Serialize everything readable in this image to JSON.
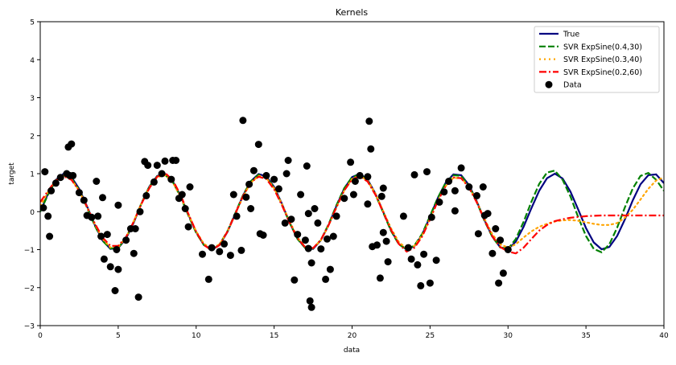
{
  "chart_data": {
    "type": "line",
    "title": "Kernels",
    "xlabel": "data",
    "ylabel": "target",
    "xlim": [
      0,
      40
    ],
    "ylim": [
      -3,
      5
    ],
    "xticks": [
      0,
      5,
      10,
      15,
      20,
      25,
      30,
      35,
      40
    ],
    "yticks": [
      -3,
      -2,
      -1,
      0,
      1,
      2,
      3,
      4,
      5
    ],
    "legend_position": "top-right",
    "grid": false,
    "series": [
      {
        "name": "True",
        "color": "#000080",
        "style": "solid",
        "x": [
          0,
          0.5,
          1,
          1.5,
          2,
          2.5,
          3,
          3.5,
          4,
          4.5,
          5,
          5.5,
          6,
          6.5,
          7,
          7.5,
          8,
          8.5,
          9,
          9.5,
          10,
          10.5,
          11,
          11.5,
          12,
          12.5,
          13,
          13.5,
          14,
          14.5,
          15,
          15.5,
          16,
          16.5,
          17,
          17.5,
          18,
          18.5,
          19,
          19.5,
          20,
          20.5,
          21,
          21.5,
          22,
          22.5,
          23,
          23.5,
          24,
          24.5,
          25,
          25.5,
          26,
          26.5,
          27,
          27.5,
          28,
          28.5,
          29,
          29.5,
          30,
          30.5,
          31,
          31.5,
          32,
          32.5,
          33,
          33.5,
          34,
          34.5,
          35,
          35.5,
          36,
          36.5,
          37,
          37.5,
          38,
          38.5,
          39,
          39.5,
          40
        ],
        "y": [
          0.0,
          0.48,
          0.84,
          1.0,
          0.91,
          0.6,
          0.14,
          -0.35,
          -0.76,
          -0.98,
          -0.96,
          -0.71,
          -0.28,
          0.22,
          0.66,
          0.94,
          0.99,
          0.8,
          0.41,
          -0.08,
          -0.54,
          -0.88,
          -1.0,
          -0.88,
          -0.54,
          -0.07,
          0.42,
          0.8,
          0.99,
          0.93,
          0.65,
          0.21,
          -0.29,
          -0.71,
          -0.96,
          -0.98,
          -0.75,
          -0.35,
          0.15,
          0.61,
          0.91,
          1.0,
          0.84,
          0.47,
          -0.01,
          -0.49,
          -0.85,
          -1.0,
          -0.91,
          -0.6,
          -0.13,
          0.36,
          0.76,
          0.98,
          0.96,
          0.7,
          0.27,
          -0.23,
          -0.66,
          -0.94,
          -0.99,
          -0.79,
          -0.4,
          0.09,
          0.55,
          0.88,
          1.0,
          0.87,
          0.53,
          0.06,
          -0.43,
          -0.81,
          -0.99,
          -0.93,
          -0.64,
          -0.2,
          0.3,
          0.72,
          0.96,
          0.98,
          0.75
        ]
      },
      {
        "name": "SVR ExpSine(0.4,30)",
        "color": "#008000",
        "style": "dashed",
        "x": [
          0,
          0.5,
          1,
          1.5,
          2,
          2.5,
          3,
          3.5,
          4,
          4.5,
          5,
          5.5,
          6,
          6.5,
          7,
          7.5,
          8,
          8.5,
          9,
          9.5,
          10,
          10.5,
          11,
          11.5,
          12,
          12.5,
          13,
          13.5,
          14,
          14.5,
          15,
          15.5,
          16,
          16.5,
          17,
          17.5,
          18,
          18.5,
          19,
          19.5,
          20,
          20.5,
          21,
          21.5,
          22,
          22.5,
          23,
          23.5,
          24,
          24.5,
          25,
          25.5,
          26,
          26.5,
          27,
          27.5,
          28,
          28.5,
          29,
          29.5,
          30,
          30.5,
          31,
          31.5,
          32,
          32.5,
          33,
          33.5,
          34,
          34.5,
          35,
          35.5,
          36,
          36.5,
          37,
          37.5,
          38,
          38.5,
          39,
          39.5,
          40
        ],
        "y": [
          0.0,
          0.45,
          0.82,
          0.97,
          0.88,
          0.57,
          0.11,
          -0.37,
          -0.77,
          -0.97,
          -0.95,
          -0.69,
          -0.26,
          0.23,
          0.66,
          0.93,
          0.97,
          0.78,
          0.39,
          -0.1,
          -0.56,
          -0.88,
          -0.99,
          -0.86,
          -0.52,
          -0.05,
          0.43,
          0.8,
          0.97,
          0.91,
          0.63,
          0.19,
          -0.3,
          -0.72,
          -0.96,
          -0.97,
          -0.74,
          -0.33,
          0.17,
          0.62,
          0.91,
          0.98,
          0.82,
          0.45,
          -0.03,
          -0.51,
          -0.86,
          -0.99,
          -0.89,
          -0.58,
          -0.11,
          0.37,
          0.76,
          0.96,
          0.94,
          0.68,
          0.25,
          -0.25,
          -0.67,
          -0.94,
          -0.98,
          -0.72,
          -0.27,
          0.26,
          0.73,
          1.03,
          1.08,
          0.84,
          0.4,
          -0.14,
          -0.64,
          -0.98,
          -1.07,
          -0.86,
          -0.42,
          0.12,
          0.61,
          0.94,
          1.02,
          0.84,
          0.55
        ]
      },
      {
        "name": "SVR ExpSine(0.3,40)",
        "color": "#FFA500",
        "style": "dotted",
        "x": [
          0,
          0.5,
          1,
          1.5,
          2,
          2.5,
          3,
          3.5,
          4,
          4.5,
          5,
          5.5,
          6,
          6.5,
          7,
          7.5,
          8,
          8.5,
          9,
          9.5,
          10,
          10.5,
          11,
          11.5,
          12,
          12.5,
          13,
          13.5,
          14,
          14.5,
          15,
          15.5,
          16,
          16.5,
          17,
          17.5,
          18,
          18.5,
          19,
          19.5,
          20,
          20.5,
          21,
          21.5,
          22,
          22.5,
          23,
          23.5,
          24,
          24.5,
          25,
          25.5,
          26,
          26.5,
          27,
          27.5,
          28,
          28.5,
          29,
          29.5,
          30,
          30.5,
          31,
          31.5,
          32,
          32.5,
          33,
          33.5,
          34,
          34.5,
          35,
          35.5,
          36,
          36.5,
          37,
          37.5,
          38,
          38.5,
          39,
          39.5,
          40
        ],
        "y": [
          0.15,
          0.52,
          0.83,
          0.95,
          0.85,
          0.55,
          0.12,
          -0.33,
          -0.72,
          -0.94,
          -0.93,
          -0.68,
          -0.25,
          0.22,
          0.64,
          0.91,
          0.96,
          0.77,
          0.4,
          -0.07,
          -0.52,
          -0.85,
          -0.97,
          -0.86,
          -0.53,
          -0.08,
          0.39,
          0.76,
          0.94,
          0.89,
          0.62,
          0.2,
          -0.26,
          -0.68,
          -0.93,
          -0.96,
          -0.75,
          -0.36,
          0.11,
          0.56,
          0.86,
          0.95,
          0.81,
          0.47,
          0.01,
          -0.44,
          -0.8,
          -0.97,
          -0.9,
          -0.62,
          -0.19,
          0.28,
          0.67,
          0.89,
          0.88,
          0.65,
          0.26,
          -0.2,
          -0.6,
          -0.86,
          -0.95,
          -0.86,
          -0.68,
          -0.52,
          -0.4,
          -0.32,
          -0.26,
          -0.23,
          -0.22,
          -0.24,
          -0.28,
          -0.32,
          -0.35,
          -0.35,
          -0.3,
          -0.16,
          0.05,
          0.32,
          0.6,
          0.82,
          0.9
        ]
      },
      {
        "name": "SVR ExpSine(0.2,60)",
        "color": "#FF0000",
        "style": "dashdot",
        "x": [
          0,
          0.5,
          1,
          1.5,
          2,
          2.5,
          3,
          3.5,
          4,
          4.5,
          5,
          5.5,
          6,
          6.5,
          7,
          7.5,
          8,
          8.5,
          9,
          9.5,
          10,
          10.5,
          11,
          11.5,
          12,
          12.5,
          13,
          13.5,
          14,
          14.5,
          15,
          15.5,
          16,
          16.5,
          17,
          17.5,
          18,
          18.5,
          19,
          19.5,
          20,
          20.5,
          21,
          21.5,
          22,
          22.5,
          23,
          23.5,
          24,
          24.5,
          25,
          25.5,
          26,
          26.5,
          27,
          27.5,
          28,
          28.5,
          29,
          29.5,
          30,
          30.5,
          31,
          31.5,
          32,
          32.5,
          33,
          33.5,
          34,
          34.5,
          35,
          35.5,
          36,
          36.5,
          37,
          37.5,
          38,
          38.5,
          39,
          39.5,
          40
        ],
        "y": [
          0.25,
          0.55,
          0.82,
          0.93,
          0.84,
          0.55,
          0.13,
          -0.31,
          -0.68,
          -0.9,
          -0.9,
          -0.67,
          -0.26,
          0.21,
          0.62,
          0.92,
          1.02,
          0.83,
          0.44,
          -0.06,
          -0.53,
          -0.88,
          -1.02,
          -0.88,
          -0.53,
          -0.06,
          0.41,
          0.77,
          0.92,
          0.86,
          0.59,
          0.17,
          -0.3,
          -0.7,
          -0.94,
          -0.96,
          -0.74,
          -0.35,
          0.12,
          0.56,
          0.85,
          0.93,
          0.79,
          0.44,
          -0.02,
          -0.48,
          -0.85,
          -1.05,
          -0.95,
          -0.65,
          -0.2,
          0.28,
          0.68,
          0.9,
          0.88,
          0.63,
          0.24,
          -0.23,
          -0.65,
          -0.93,
          -1.05,
          -1.1,
          -0.95,
          -0.72,
          -0.5,
          -0.35,
          -0.25,
          -0.2,
          -0.16,
          -0.14,
          -0.12,
          -0.11,
          -0.1,
          -0.1,
          -0.1,
          -0.1,
          -0.1,
          -0.1,
          -0.1,
          -0.1,
          -0.1
        ]
      }
    ],
    "scatter": {
      "name": "Data",
      "color": "#000000",
      "points": [
        [
          0.2,
          0.1
        ],
        [
          0.3,
          1.05
        ],
        [
          0.5,
          -0.12
        ],
        [
          0.6,
          -0.65
        ],
        [
          0.7,
          0.55
        ],
        [
          1.0,
          0.75
        ],
        [
          1.3,
          0.9
        ],
        [
          1.7,
          1.0
        ],
        [
          1.8,
          1.7
        ],
        [
          1.9,
          0.95
        ],
        [
          2.0,
          1.78
        ],
        [
          2.1,
          0.95
        ],
        [
          2.5,
          0.5
        ],
        [
          2.8,
          0.3
        ],
        [
          3.0,
          -0.1
        ],
        [
          3.3,
          -0.15
        ],
        [
          3.6,
          0.8
        ],
        [
          3.7,
          -0.12
        ],
        [
          3.9,
          -0.65
        ],
        [
          4.0,
          0.37
        ],
        [
          4.1,
          -1.25
        ],
        [
          4.3,
          -0.6
        ],
        [
          4.5,
          -1.45
        ],
        [
          4.8,
          -2.08
        ],
        [
          4.9,
          -1.0
        ],
        [
          5.0,
          -1.52
        ],
        [
          5.0,
          0.17
        ],
        [
          5.5,
          -0.75
        ],
        [
          5.8,
          -0.45
        ],
        [
          6.0,
          -1.1
        ],
        [
          6.1,
          -0.45
        ],
        [
          6.3,
          -2.25
        ],
        [
          6.4,
          0.0
        ],
        [
          6.7,
          1.32
        ],
        [
          6.8,
          0.42
        ],
        [
          6.9,
          1.22
        ],
        [
          7.3,
          0.78
        ],
        [
          7.5,
          1.22
        ],
        [
          7.8,
          1.0
        ],
        [
          8.0,
          1.33
        ],
        [
          8.4,
          0.85
        ],
        [
          8.5,
          1.35
        ],
        [
          8.7,
          1.35
        ],
        [
          8.9,
          0.35
        ],
        [
          9.1,
          0.45
        ],
        [
          9.3,
          0.08
        ],
        [
          9.5,
          -0.4
        ],
        [
          9.6,
          0.65
        ],
        [
          10.4,
          -1.12
        ],
        [
          10.8,
          -1.78
        ],
        [
          11.0,
          -0.95
        ],
        [
          11.5,
          -1.05
        ],
        [
          11.8,
          -0.85
        ],
        [
          12.2,
          -1.15
        ],
        [
          12.4,
          0.45
        ],
        [
          12.6,
          -0.12
        ],
        [
          12.9,
          -1.02
        ],
        [
          13.0,
          2.4
        ],
        [
          13.2,
          0.38
        ],
        [
          13.4,
          0.72
        ],
        [
          13.5,
          0.08
        ],
        [
          13.7,
          1.08
        ],
        [
          14.0,
          1.77
        ],
        [
          14.1,
          -0.58
        ],
        [
          14.3,
          -0.62
        ],
        [
          14.5,
          0.95
        ],
        [
          15.0,
          0.85
        ],
        [
          15.3,
          0.6
        ],
        [
          15.7,
          -0.3
        ],
        [
          15.8,
          1.0
        ],
        [
          15.9,
          1.35
        ],
        [
          16.1,
          -0.2
        ],
        [
          16.3,
          -1.8
        ],
        [
          16.5,
          -0.6
        ],
        [
          16.7,
          0.45
        ],
        [
          17.0,
          -0.75
        ],
        [
          17.1,
          1.2
        ],
        [
          17.2,
          -0.97
        ],
        [
          17.2,
          -0.05
        ],
        [
          17.3,
          -2.35
        ],
        [
          17.4,
          -2.52
        ],
        [
          17.4,
          -1.35
        ],
        [
          17.6,
          0.08
        ],
        [
          17.8,
          -0.3
        ],
        [
          18.0,
          -0.98
        ],
        [
          18.3,
          -1.78
        ],
        [
          18.4,
          -0.72
        ],
        [
          18.6,
          -1.52
        ],
        [
          18.8,
          -0.65
        ],
        [
          19.0,
          -0.12
        ],
        [
          19.5,
          0.35
        ],
        [
          19.9,
          1.3
        ],
        [
          20.1,
          0.45
        ],
        [
          20.2,
          0.8
        ],
        [
          20.5,
          0.95
        ],
        [
          21.0,
          0.92
        ],
        [
          21.0,
          0.2
        ],
        [
          21.1,
          2.38
        ],
        [
          21.2,
          1.65
        ],
        [
          21.3,
          -0.92
        ],
        [
          21.6,
          -0.88
        ],
        [
          21.8,
          -1.75
        ],
        [
          21.9,
          0.4
        ],
        [
          22.0,
          0.62
        ],
        [
          22.0,
          -0.55
        ],
        [
          22.2,
          -0.78
        ],
        [
          22.3,
          -1.32
        ],
        [
          23.3,
          -0.12
        ],
        [
          23.6,
          -0.95
        ],
        [
          23.8,
          -1.25
        ],
        [
          24.0,
          0.97
        ],
        [
          24.2,
          -1.4
        ],
        [
          24.4,
          -1.95
        ],
        [
          24.6,
          -1.12
        ],
        [
          24.8,
          1.05
        ],
        [
          25.0,
          -1.88
        ],
        [
          25.1,
          -0.15
        ],
        [
          25.4,
          -1.28
        ],
        [
          25.6,
          0.25
        ],
        [
          25.9,
          0.52
        ],
        [
          26.2,
          0.8
        ],
        [
          26.6,
          0.02
        ],
        [
          26.6,
          0.55
        ],
        [
          27.0,
          1.15
        ],
        [
          27.5,
          0.65
        ],
        [
          28.0,
          0.42
        ],
        [
          28.1,
          -0.58
        ],
        [
          28.4,
          0.65
        ],
        [
          28.5,
          -0.1
        ],
        [
          28.7,
          -0.05
        ],
        [
          29.0,
          -1.1
        ],
        [
          29.2,
          -0.45
        ],
        [
          29.4,
          -1.88
        ],
        [
          29.5,
          -0.75
        ],
        [
          29.7,
          -1.62
        ],
        [
          30.0,
          -1.0
        ]
      ]
    }
  }
}
